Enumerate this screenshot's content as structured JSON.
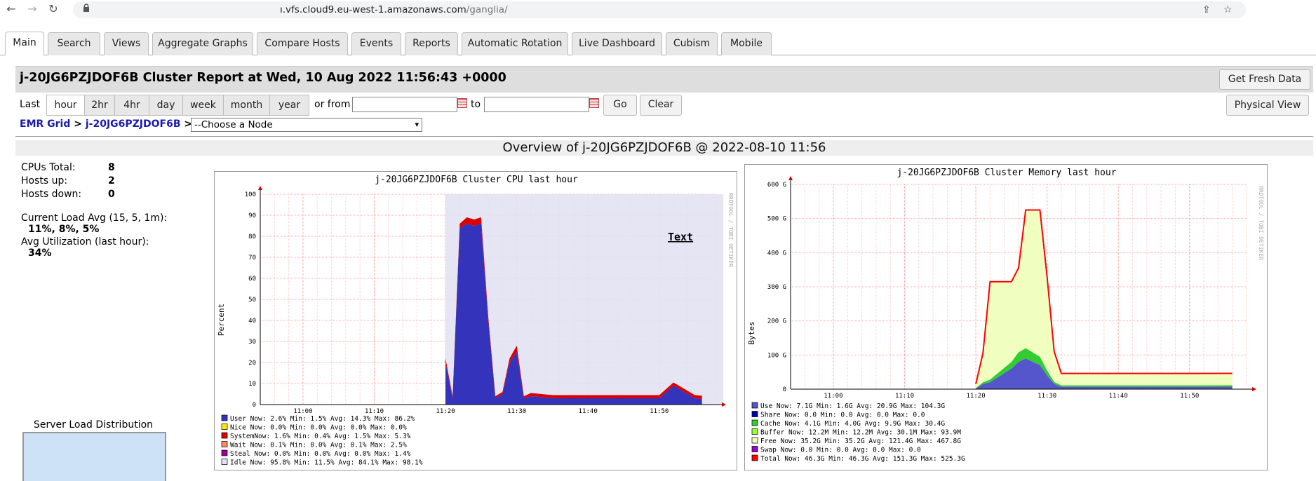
{
  "browser": {
    "url_host": "ı.vfs.cloud9.eu-west-1.amazonaws.com",
    "url_path": "/ganglia/",
    "back": "←",
    "forward": "→",
    "reload": "↻",
    "share": "⇪",
    "star": "☆"
  },
  "tabs": [
    "Main",
    "Search",
    "Views",
    "Aggregate Graphs",
    "Compare Hosts",
    "Events",
    "Reports",
    "Automatic Rotation",
    "Live Dashboard",
    "Cubism",
    "Mobile"
  ],
  "header": {
    "title": "j-20JG6PZJDOF6B Cluster Report at Wed, 10 Aug 2022 11:56:43 +0000",
    "fresh": "Get Fresh Data"
  },
  "range": {
    "last": "Last",
    "options": [
      "hour",
      "2hr",
      "4hr",
      "day",
      "week",
      "month",
      "year"
    ],
    "selected": "hour",
    "or_from": "or from",
    "to": "to",
    "go": "Go",
    "clear": "Clear",
    "physical": "Physical View"
  },
  "breadcrumb": {
    "grid": "EMR Grid",
    "sep": ">",
    "cluster": "j-20JG6PZJDOF6B",
    "node_placeholder": "--Choose a Node"
  },
  "overview": "Overview of j-20JG6PZJDOF6B @ 2022-08-10 11:56",
  "stats": {
    "cpus_label": "CPUs Total:",
    "cpus": "8",
    "up_label": "Hosts up:",
    "up": "2",
    "down_label": "Hosts down:",
    "down": "0",
    "load_label": "Current Load Avg (15, 5, 1m):",
    "load": "11%, 8%, 5%",
    "util_label": "Avg Utilization (last hour):",
    "util": "34%"
  },
  "server_load": "Server Load Distribution",
  "cpu_graph": {
    "title": "j-20JG6PZJDOF6B Cluster CPU last hour",
    "ylabel": "Percent",
    "side": "RRDTOOL / TOBI OETIKER",
    "yticks": [
      "100",
      "90",
      "80",
      "70",
      "60",
      "50",
      "40",
      "30",
      "20",
      "10",
      "0"
    ],
    "xticks": [
      "11:00",
      "11:10",
      "11:20",
      "11:30",
      "11:40",
      "11:50"
    ],
    "annotation": "Text",
    "legend": [
      {
        "name": "User",
        "color": "#3333bb",
        "line": "User  Now:  2.6%  Min:  1.5%  Avg: 14.3%  Max: 86.2%"
      },
      {
        "name": "Nice",
        "color": "#ffea00",
        "line": "Nice  Now:  0.0%  Min:  0.0%  Avg:  0.0%  Max:  0.0%"
      },
      {
        "name": "System",
        "color": "#dd0000",
        "line": "SystemNow:  1.6%  Min:  0.4%  Avg:  1.5%  Max:  5.3%"
      },
      {
        "name": "Wait",
        "color": "#ff8a60",
        "line": "Wait  Now:  0.1%  Min:  0.0%  Avg:  0.1%  Max:  2.5%"
      },
      {
        "name": "Steal",
        "color": "#990099",
        "line": "Steal  Now:  0.0%  Min:  0.0%  Avg:  0.0%  Max:  1.4%"
      },
      {
        "name": "Idle",
        "color": "#e2e2f2",
        "line": "Idle  Now: 95.8%  Min: 11.5%  Avg: 84.1%  Max: 98.1%"
      }
    ]
  },
  "mem_graph": {
    "title": "j-20JG6PZJDOF6B Cluster Memory last hour",
    "ylabel": "Bytes",
    "side": "RRDTOOL / TOBI OETIKER",
    "yticks": [
      "600 G",
      "500 G",
      "400 G",
      "300 G",
      "200 G",
      "100 G",
      "0"
    ],
    "xticks": [
      "11:00",
      "11:10",
      "11:20",
      "11:30",
      "11:40",
      "11:50"
    ],
    "legend": [
      {
        "name": "Use",
        "color": "#5555cc",
        "line": "Use   Now:   7.1G   Min:   1.6G   Avg:  20.9G   Max: 104.3G"
      },
      {
        "name": "Share",
        "color": "#0000aa",
        "line": "Share  Now:   0.0    Min:   0.0    Avg:   0.0    Max:   0.0"
      },
      {
        "name": "Cache",
        "color": "#33cc33",
        "line": "Cache  Now:   4.1G   Min:   4.0G   Avg:   9.9G   Max:  30.4G"
      },
      {
        "name": "Buffer",
        "color": "#99ff33",
        "line": "Buffer Now:  12.2M   Min:  12.2M   Avg:  30.1M   Max:  93.9M"
      },
      {
        "name": "Free",
        "color": "#f0ffc0",
        "line": "Free  Now:  35.2G   Min:  35.2G  Avg: 121.4G   Max: 467.8G"
      },
      {
        "name": "Swap",
        "color": "#9900cc",
        "line": "Swap  Now:   0.0    Min:   0.0    Avg:   0.0    Max:   0.0"
      },
      {
        "name": "Total",
        "color": "#ff0000",
        "line": "Total  Now:  46.3G   Min:  46.3G  Avg: 151.3G   Max: 525.3G"
      }
    ]
  },
  "chart_data": [
    {
      "type": "area",
      "title": "j-20JG6PZJDOF6B Cluster CPU last hour",
      "ylabel": "Percent",
      "ylim": [
        0,
        100
      ],
      "xlabel": "",
      "x": [
        "11:20",
        "11:21",
        "11:22",
        "11:23",
        "11:24",
        "11:25",
        "11:26",
        "11:27",
        "11:28",
        "11:29",
        "11:30",
        "11:31",
        "11:32",
        "11:35",
        "11:40",
        "11:45",
        "11:50",
        "11:52",
        "11:55",
        "11:56"
      ],
      "series": [
        {
          "name": "User",
          "values": [
            20,
            3,
            84,
            86,
            85,
            86,
            40,
            3,
            5,
            20,
            25,
            3,
            4,
            3,
            3,
            3,
            3,
            9,
            3,
            2.6
          ]
        },
        {
          "name": "System",
          "values": [
            2,
            1,
            2,
            3,
            3,
            3,
            2,
            1,
            1,
            2,
            3,
            1,
            1.5,
            1.5,
            1.5,
            1.5,
            1.5,
            1.5,
            1.5,
            1.6
          ]
        }
      ]
    },
    {
      "type": "area",
      "title": "j-20JG6PZJDOF6B Cluster Memory last hour",
      "ylabel": "Bytes",
      "ylim": [
        0,
        600
      ],
      "xlabel": "",
      "x": [
        "11:20",
        "11:21",
        "11:22",
        "11:25",
        "11:26",
        "11:27",
        "11:29",
        "11:30",
        "11:31",
        "11:32",
        "11:40",
        "11:50",
        "11:56"
      ],
      "series": [
        {
          "name": "Use",
          "values": [
            2,
            15,
            20,
            60,
            80,
            90,
            70,
            40,
            15,
            7,
            7,
            7,
            7.1
          ]
        },
        {
          "name": "Cache",
          "values": [
            1,
            5,
            8,
            20,
            28,
            30,
            25,
            15,
            6,
            4,
            4,
            4,
            4.1
          ]
        },
        {
          "name": "Total",
          "values": [
            15,
            105,
            315,
            315,
            355,
            525,
            525,
            330,
            110,
            46,
            46,
            46,
            46.3
          ]
        }
      ]
    }
  ]
}
